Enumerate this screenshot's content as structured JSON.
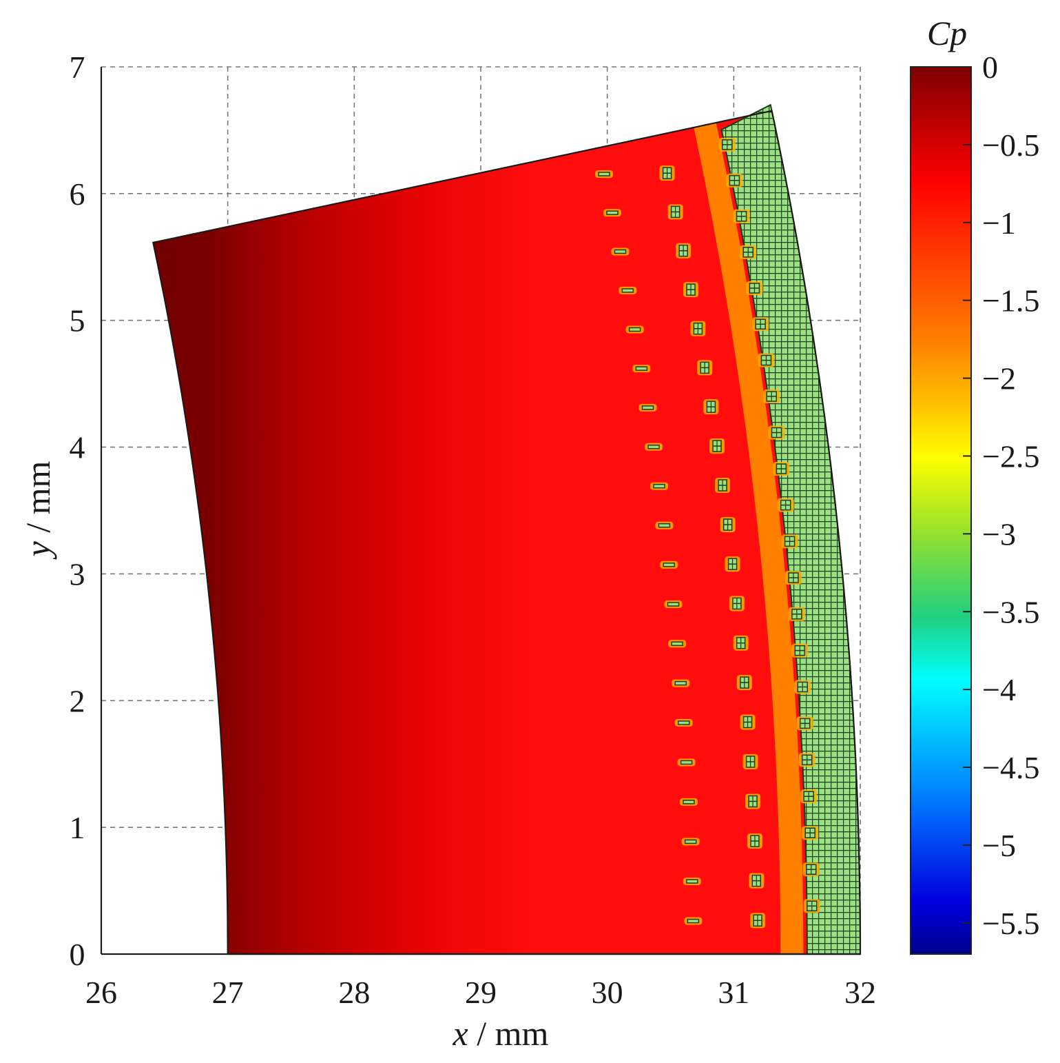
{
  "chart_data": {
    "type": "heatmap",
    "xlabel": {
      "symbol": "x",
      "unit": " / mm"
    },
    "ylabel": {
      "symbol": "y",
      "unit": " / mm"
    },
    "xlim": [
      26,
      32
    ],
    "ylim": [
      0,
      7
    ],
    "x_ticks": [
      "26",
      "27",
      "28",
      "29",
      "30",
      "31",
      "32"
    ],
    "y_ticks": [
      "0",
      "1",
      "2",
      "3",
      "4",
      "5",
      "6",
      "7"
    ],
    "grid": true,
    "colorbar": {
      "label": "Cp",
      "range": [
        -5.7,
        0
      ],
      "ticks": [
        "0",
        "−0.5",
        "−1",
        "−1.5",
        "−2",
        "−2.5",
        "−3",
        "−3.5",
        "−4",
        "−4.5",
        "−5",
        "−5.5"
      ],
      "colormap": "jet"
    },
    "domain_sector": {
      "inner_radius_mm": 27.0,
      "outer_radius_mm": 32.0,
      "angle_deg": 12,
      "field": "Cp near 0 (dark red) at inner radius, about −0.8 (red) through the middle, dropping toward about −2.5 (green) in the cavitating band at the outer radius"
    },
    "cavitation_rows": {
      "row1_count": 20,
      "row2_count": 20,
      "row3_count": 22
    }
  },
  "colors": {
    "field_inner": "#7b0000",
    "field_mid": "#ff0d0d",
    "field_orange": "#ff8c00",
    "cavity_green": "#9be080",
    "cavity_line": "#1a3d1a"
  }
}
